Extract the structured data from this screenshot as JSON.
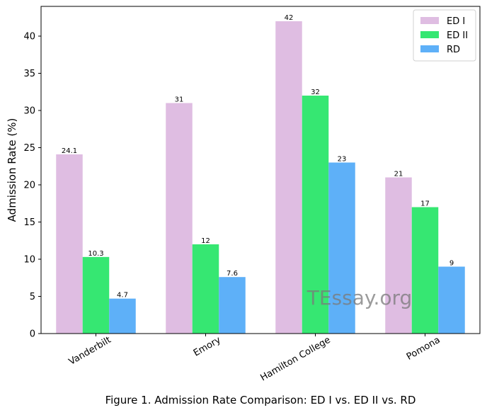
{
  "chart_data": {
    "type": "bar",
    "categories": [
      "Vanderbilt",
      "Emory",
      "Hamilton College",
      "Pomona"
    ],
    "series": [
      {
        "name": "ED I",
        "values": [
          24.1,
          31,
          42,
          21
        ],
        "labels": [
          "24.1",
          "31",
          "42",
          "21"
        ],
        "color": "#dfbde2"
      },
      {
        "name": "ED II",
        "values": [
          10.3,
          12,
          32,
          17
        ],
        "labels": [
          "10.3",
          "12",
          "32",
          "17"
        ],
        "color": "#36e772"
      },
      {
        "name": "RD",
        "values": [
          4.7,
          7.6,
          23,
          9
        ],
        "labels": [
          "4.7",
          "7.6",
          "23",
          "9"
        ],
        "color": "#5eb0f8"
      }
    ],
    "ylabel": "Admission Rate (%)",
    "xlabel": "",
    "ylim": [
      0,
      44
    ],
    "yticks": [
      0,
      5,
      10,
      15,
      20,
      25,
      30,
      35,
      40
    ],
    "legend_position": "top-right",
    "grid": false
  },
  "caption": "Figure 1. Admission Rate Comparison: ED I vs. ED II vs. RD",
  "watermark": "TEssay.org"
}
